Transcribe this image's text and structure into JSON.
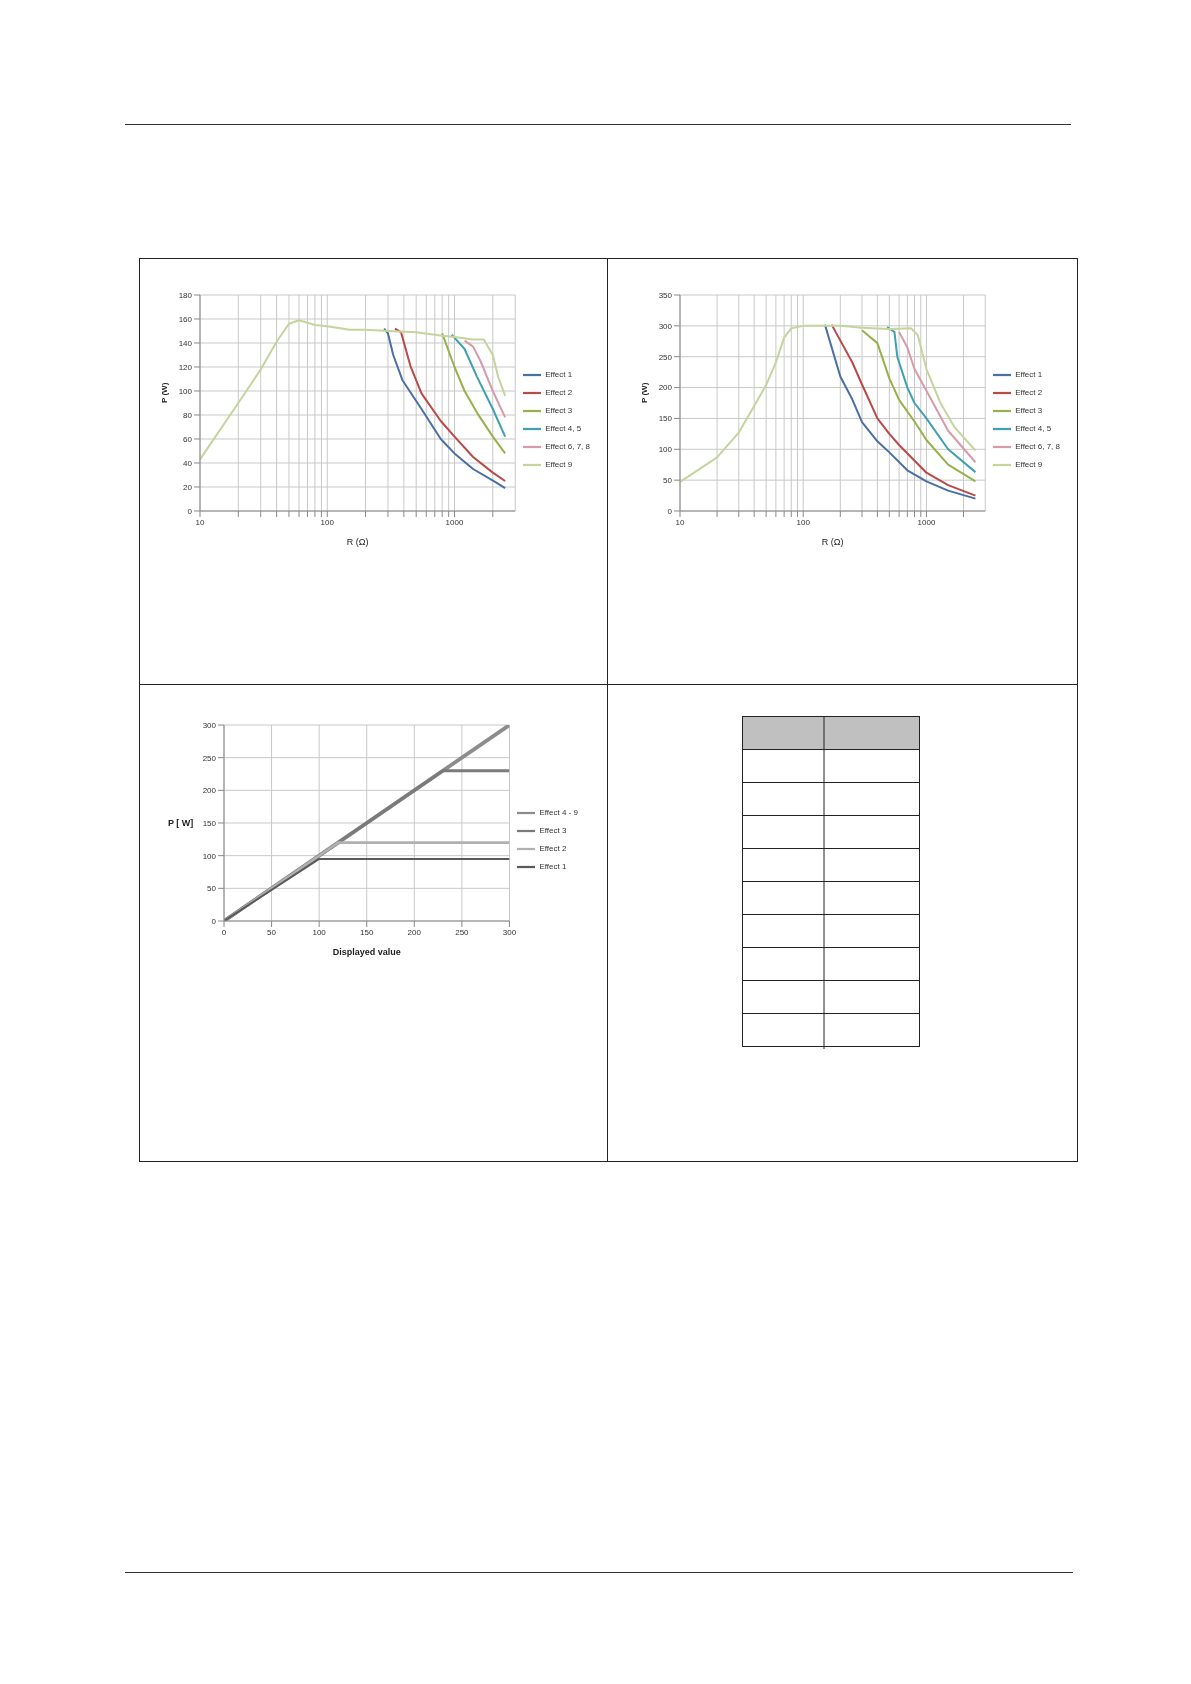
{
  "chart_data": [
    {
      "type": "line",
      "xlabel": "R (Ω)",
      "ylabel": "P (W)",
      "log": "x",
      "xlim": [
        10,
        3000
      ],
      "ylim": [
        0,
        180
      ],
      "xticks": [
        10,
        {
          "value": 20,
          "label": null
        },
        {
          "value": 30,
          "label": null
        },
        {
          "value": 40,
          "label": null
        },
        {
          "value": 50,
          "label": null
        },
        {
          "value": 60,
          "label": null
        },
        {
          "value": 70,
          "label": null
        },
        {
          "value": 80,
          "label": null
        },
        {
          "value": 90,
          "label": null
        },
        100,
        {
          "value": 200,
          "label": null
        },
        {
          "value": 300,
          "label": null
        },
        {
          "value": 400,
          "label": null
        },
        {
          "value": 500,
          "label": null
        },
        {
          "value": 600,
          "label": null
        },
        {
          "value": 700,
          "label": null
        },
        {
          "value": 800,
          "label": null
        },
        {
          "value": 900,
          "label": null
        },
        1000,
        {
          "value": 2000,
          "label": null
        }
      ],
      "yticks": [
        0,
        20,
        40,
        60,
        80,
        100,
        120,
        140,
        160,
        180
      ],
      "grid": true,
      "legend": "right",
      "marker": "none",
      "line_style": "solid",
      "series": [
        {
          "name": "Effect 1",
          "color": "#4a6fa5",
          "x": [
            280,
            300,
            330,
            390,
            550,
            780,
            1000,
            1400,
            2100,
            2500
          ],
          "values": [
            152,
            148,
            130,
            109,
            85,
            60,
            48,
            35,
            24,
            19
          ]
        },
        {
          "name": "Effect 2",
          "color": "#b84a48",
          "x": [
            340,
            380,
            450,
            550,
            780,
            1000,
            1400,
            2000,
            2500
          ],
          "values": [
            152,
            149,
            121,
            98,
            75,
            62,
            45,
            32,
            25
          ]
        },
        {
          "name": "Effect 3",
          "color": "#98b04a",
          "x": [
            800,
            1000,
            1200,
            1500,
            2000,
            2500
          ],
          "values": [
            148,
            120,
            100,
            82,
            62,
            48
          ]
        },
        {
          "name": "Effect 4, 5",
          "color": "#3fa0b0",
          "x": [
            950,
            1200,
            1500,
            2000,
            2500
          ],
          "values": [
            147,
            135,
            112,
            85,
            62
          ]
        },
        {
          "name": "Effect 6, 7, 8",
          "color": "#d99aa8",
          "x": [
            1200,
            1400,
            1600,
            2000,
            2500
          ],
          "values": [
            142,
            137,
            125,
            100,
            78
          ]
        },
        {
          "name": "Effect 9",
          "color": "#c4d49c",
          "x": [
            10,
            20,
            30,
            40,
            50,
            60,
            80,
            100,
            150,
            200,
            300,
            500,
            800,
            1000,
            1400,
            1700,
            2000,
            2200,
            2500
          ],
          "values": [
            43,
            90,
            118,
            141,
            156,
            159,
            155,
            154,
            151,
            151,
            150,
            149,
            146,
            145,
            143,
            143,
            130,
            112,
            96
          ]
        }
      ]
    },
    {
      "type": "line",
      "xlabel": "R (Ω)",
      "ylabel": "P (W)",
      "log": "x",
      "xlim": [
        10,
        3000
      ],
      "ylim": [
        0,
        350
      ],
      "xticks": [
        10,
        {
          "value": 20,
          "label": null
        },
        {
          "value": 30,
          "label": null
        },
        {
          "value": 40,
          "label": null
        },
        {
          "value": 50,
          "label": null
        },
        {
          "value": 60,
          "label": null
        },
        {
          "value": 70,
          "label": null
        },
        {
          "value": 80,
          "label": null
        },
        {
          "value": 90,
          "label": null
        },
        100,
        {
          "value": 200,
          "label": null
        },
        {
          "value": 300,
          "label": null
        },
        {
          "value": 400,
          "label": null
        },
        {
          "value": 500,
          "label": null
        },
        {
          "value": 600,
          "label": null
        },
        {
          "value": 700,
          "label": null
        },
        {
          "value": 800,
          "label": null
        },
        {
          "value": 900,
          "label": null
        },
        1000,
        {
          "value": 2000,
          "label": null
        }
      ],
      "yticks": [
        0,
        50,
        100,
        150,
        200,
        250,
        300,
        350
      ],
      "grid": true,
      "legend": "right",
      "marker": "none",
      "line_style": "solid",
      "series": [
        {
          "name": "Effect 1",
          "color": "#4a6fa5",
          "x": [
            150,
            200,
            250,
            300,
            400,
            500,
            700,
            1000,
            1500,
            2500
          ],
          "values": [
            302,
            218,
            181,
            144,
            113,
            95,
            66,
            48,
            33,
            20
          ]
        },
        {
          "name": "Effect 2",
          "color": "#b84a48",
          "x": [
            170,
            250,
            300,
            400,
            500,
            600,
            1000,
            1500,
            2500
          ],
          "values": [
            302,
            241,
            205,
            150,
            125,
            107,
            62,
            42,
            25
          ]
        },
        {
          "name": "Effect 3",
          "color": "#98b04a",
          "x": [
            300,
            400,
            500,
            600,
            800,
            1000,
            1500,
            2500
          ],
          "values": [
            293,
            272,
            215,
            180,
            145,
            115,
            75,
            48
          ]
        },
        {
          "name": "Effect 4, 5",
          "color": "#3fa0b0",
          "x": [
            480,
            550,
            580,
            700,
            800,
            1000,
            1500,
            2500
          ],
          "values": [
            298,
            290,
            250,
            200,
            175,
            150,
            100,
            63
          ]
        },
        {
          "name": "Effect 6, 7, 8",
          "color": "#d99aa8",
          "x": [
            600,
            700,
            800,
            1000,
            1500,
            2500
          ],
          "values": [
            290,
            265,
            230,
            195,
            130,
            79
          ]
        },
        {
          "name": "Effect 9",
          "color": "#c4d49c",
          "x": [
            10,
            20,
            30,
            40,
            50,
            60,
            70,
            80,
            100,
            150,
            200,
            300,
            500,
            750,
            850,
            1000,
            1300,
            1700,
            2500
          ],
          "values": [
            47,
            87,
            127,
            170,
            204,
            241,
            281,
            296,
            300,
            300,
            300,
            297,
            295,
            296,
            285,
            230,
            175,
            135,
            98
          ]
        }
      ]
    },
    {
      "type": "line",
      "xlabel": "Displayed value",
      "ylabel": "P [ W]",
      "xlim": [
        0,
        300
      ],
      "ylim": [
        0,
        300
      ],
      "xticks": [
        0,
        50,
        100,
        150,
        200,
        250,
        300
      ],
      "yticks": [
        0,
        50,
        100,
        150,
        200,
        250,
        300
      ],
      "grid": true,
      "legend": "right",
      "marker": "none",
      "line_style": "solid",
      "series": [
        {
          "name": "Effect 4 - 9",
          "color": "#8c8c8c",
          "x": [
            0,
            300
          ],
          "values": [
            0,
            300
          ]
        },
        {
          "name": "Effect 3",
          "color": "#7a7a7a",
          "x": [
            0,
            230,
            300
          ],
          "values": [
            0,
            230,
            230
          ]
        },
        {
          "name": "Effect 2",
          "color": "#b0b0b0",
          "x": [
            0,
            120,
            300
          ],
          "values": [
            0,
            120,
            120
          ]
        },
        {
          "name": "Effect 1",
          "color": "#5a5a5a",
          "x": [
            0,
            100,
            300
          ],
          "values": [
            0,
            95,
            95
          ]
        }
      ]
    }
  ]
}
